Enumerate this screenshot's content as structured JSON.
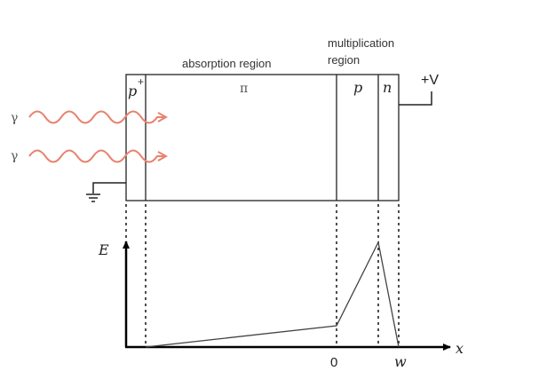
{
  "diagram": {
    "labels": {
      "absorption": "absorption region",
      "multiplication_1": "multiplication",
      "multiplication_2": "region",
      "p_plus_p": "p",
      "p_plus_sup": "+",
      "pi": "π",
      "p": "p",
      "n": "n",
      "bias": "+V",
      "photon_1": "γ",
      "photon_2": "γ",
      "e_axis": "E",
      "x_axis": "x",
      "origin": "0",
      "width": "w"
    },
    "colors": {
      "photon_wave": "#e8826f",
      "lines": "#222222",
      "axes": "#000000"
    }
  }
}
